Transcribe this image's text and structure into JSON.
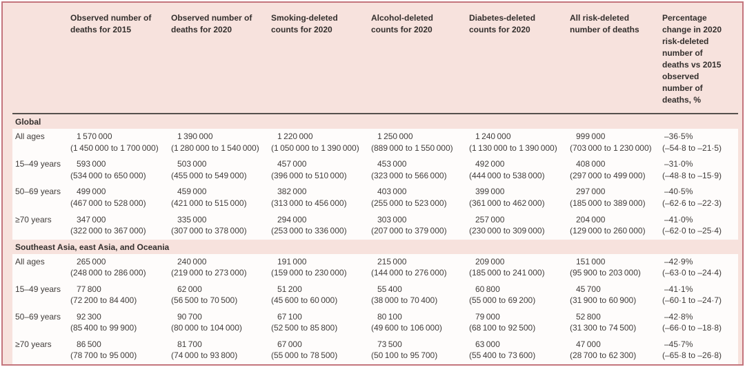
{
  "colors": {
    "table_background": "#f7e2dd",
    "table_border": "#c3747c",
    "header_rule": "#55504d",
    "row_background": "#fefcfb",
    "text": "#403c3a"
  },
  "table": {
    "columns": [
      "Observed number of deaths for 2015",
      "Observed number of deaths for 2020",
      "Smoking-deleted counts for 2020",
      "Alcohol-deleted counts for 2020",
      "Diabetes-deleted counts for 2020",
      "All risk-deleted number of deaths",
      "Percentage change in 2020 risk-deleted number of deaths vs 2015 observed number of deaths, %"
    ],
    "sections": [
      {
        "label": "Global",
        "rows": [
          {
            "label": "All ages",
            "values": [
              {
                "est": "1 570 000",
                "ci": "(1 450 000 to 1 700 000)"
              },
              {
                "est": "1 390 000",
                "ci": "(1 280 000 to 1 540 000)"
              },
              {
                "est": "1 220 000",
                "ci": "(1 050 000 to 1 390 000)"
              },
              {
                "est": "1 250 000",
                "ci": "(889 000 to 1 550 000)"
              },
              {
                "est": "1 240 000",
                "ci": "(1 130 000 to 1 390 000)"
              },
              {
                "est": "999 000",
                "ci": "(703 000 to 1 230 000)"
              },
              {
                "est": "–36·5%",
                "ci": "(–54·8 to –21·5)"
              }
            ]
          },
          {
            "label": "15–49 years",
            "values": [
              {
                "est": "593 000",
                "ci": "(534 000 to 650 000)"
              },
              {
                "est": "503 000",
                "ci": "(455 000 to 549 000)"
              },
              {
                "est": "457 000",
                "ci": "(396 000 to 510 000)"
              },
              {
                "est": "453 000",
                "ci": "(323 000 to 566 000)"
              },
              {
                "est": "492 000",
                "ci": "(444 000 to 538 000)"
              },
              {
                "est": "408 000",
                "ci": "(297 000 to 499 000)"
              },
              {
                "est": "–31·0%",
                "ci": "(–48·8 to –15·9)"
              }
            ]
          },
          {
            "label": "50–69 years",
            "values": [
              {
                "est": "499 000",
                "ci": "(467 000 to 528 000)"
              },
              {
                "est": "459 000",
                "ci": "(421 000 to 515 000)"
              },
              {
                "est": "382 000",
                "ci": "(313 000 to 456 000)"
              },
              {
                "est": "403 000",
                "ci": "(255 000 to 523 000)"
              },
              {
                "est": "399 000",
                "ci": "(361 000 to 462 000)"
              },
              {
                "est": "297 000",
                "ci": "(185 000 to 389 000)"
              },
              {
                "est": "–40·5%",
                "ci": "(–62·6 to –22·3)"
              }
            ]
          },
          {
            "label": "≥70 years",
            "values": [
              {
                "est": "347 000",
                "ci": "(322 000 to 367 000)"
              },
              {
                "est": "335 000",
                "ci": "(307 000 to 378 000)"
              },
              {
                "est": "294 000",
                "ci": "(253 000 to 336 000)"
              },
              {
                "est": "303 000",
                "ci": "(207 000 to 379 000)"
              },
              {
                "est": "257 000",
                "ci": "(230 000 to 309 000)"
              },
              {
                "est": "204 000",
                "ci": "(129 000 to 260 000)"
              },
              {
                "est": "–41·0%",
                "ci": "(–62·0 to –25·4)"
              }
            ]
          }
        ]
      },
      {
        "label": "Southeast Asia, east Asia, and Oceania",
        "rows": [
          {
            "label": "All ages",
            "values": [
              {
                "est": "265 000",
                "ci": "(248 000 to 286 000)"
              },
              {
                "est": "240 000",
                "ci": "(219 000 to 273 000)"
              },
              {
                "est": "191 000",
                "ci": "(159 000 to 230 000)"
              },
              {
                "est": "215 000",
                "ci": "(144 000 to 276 000)"
              },
              {
                "est": "209 000",
                "ci": "(185 000 to 241 000)"
              },
              {
                "est": "151 000",
                "ci": "(95 900 to 203 000)"
              },
              {
                "est": "–42·9%",
                "ci": "(–63·0 to –24·4)"
              }
            ]
          },
          {
            "label": "15–49 years",
            "values": [
              {
                "est": "77 800",
                "ci": "(72 200 to 84 400)"
              },
              {
                "est": "62 000",
                "ci": "(56 500 to 70 500)"
              },
              {
                "est": "51 200",
                "ci": "(45 600 to 60 000)"
              },
              {
                "est": "55 400",
                "ci": "(38 000 to 70 400)"
              },
              {
                "est": "60 800",
                "ci": "(55 000 to 69 200)"
              },
              {
                "est": "45 700",
                "ci": "(31 900 to 60 900)"
              },
              {
                "est": "–41·1%",
                "ci": "(–60·1 to –24·7)"
              }
            ]
          },
          {
            "label": "50–69 years",
            "values": [
              {
                "est": "92 300",
                "ci": "(85 400 to 99 900)"
              },
              {
                "est": "90 700",
                "ci": "(80 000 to 104 000)"
              },
              {
                "est": "67 100",
                "ci": "(52 500 to 85 800)"
              },
              {
                "est": "80 100",
                "ci": "(49 600 to 106 000)"
              },
              {
                "est": "79 000",
                "ci": "(68 100 to 92 500)"
              },
              {
                "est": "52 800",
                "ci": "(31 300 to 74 500)"
              },
              {
                "est": "–42·8%",
                "ci": "(–66·0 to –18·8)"
              }
            ]
          },
          {
            "label": "≥70 years",
            "values": [
              {
                "est": "86 500",
                "ci": "(78 700 to 95 000)"
              },
              {
                "est": "81 700",
                "ci": "(74 000 to 93 800)"
              },
              {
                "est": "67 000",
                "ci": "(55 000 to 78 500)"
              },
              {
                "est": "73 500",
                "ci": "(50 100 to 95 700)"
              },
              {
                "est": "63 000",
                "ci": "(55 400 to 73 600)"
              },
              {
                "est": "47 000",
                "ci": "(28 700 to 62 300)"
              },
              {
                "est": "–45·7%",
                "ci": "(–65·8 to –26·8)"
              }
            ]
          }
        ]
      }
    ]
  }
}
